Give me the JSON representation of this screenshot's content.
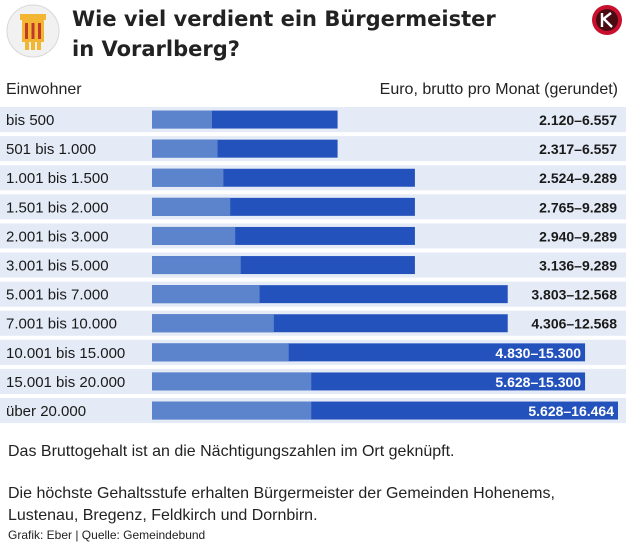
{
  "header": {
    "title_line1": "Wie viel verdient ein Bürgermeister",
    "title_line2": "in Vorarlberg?"
  },
  "columns": {
    "left": "Einwohner",
    "right": "Euro, brutto pro Monat (gerundet)"
  },
  "chart_data": {
    "type": "bar",
    "orientation": "horizontal",
    "categories": [
      "bis 500",
      "501 bis 1.000",
      "1.001 bis 1.500",
      "1.501 bis 2.000",
      "2.001 bis 3.000",
      "3.001 bis 5.000",
      "5.001 bis 7.000",
      "7.001 bis 10.000",
      "10.001 bis 15.000",
      "15.001 bis 20.000",
      "über 20.000"
    ],
    "series": [
      {
        "values": [
          2120,
          2317,
          2524,
          2765,
          2940,
          3136,
          3803,
          4306,
          4830,
          5628,
          5628
        ]
      },
      {
        "values": [
          6557,
          6557,
          9289,
          9289,
          9289,
          9289,
          12568,
          12568,
          15300,
          15300,
          16464
        ]
      }
    ],
    "labels": [
      "2.120–6.557",
      "2.317–6.557",
      "2.524–9.289",
      "2.765–9.289",
      "2.940–9.289",
      "3.136–9.289",
      "3.803–12.568",
      "4.306–12.568",
      "4.830–15.300",
      "5.628–15.300",
      "5.628–16.464"
    ],
    "colors": {
      "min": "#5b84cc",
      "max": "#2452bd",
      "row_bg": "#e4ebf6",
      "label_inside": "#ffffff",
      "label_outside": "#1a1a1a"
    }
  },
  "notes": {
    "line1": "Das Bruttogehalt ist an die Nächtigungszahlen im Ort geknüpft.",
    "line2": "Die höchste Gehaltsstufe erhalten Bürgermeister der Gemeinden Hohenems, Lustenau, Bregenz, Feldkirch und Dornbirn."
  },
  "source": "Grafik: Eber | Quelle: Gemeindebund",
  "icons": {
    "emblem": "vorarlberg-coat-of-arms-icon",
    "badge": "news-logo-icon"
  }
}
